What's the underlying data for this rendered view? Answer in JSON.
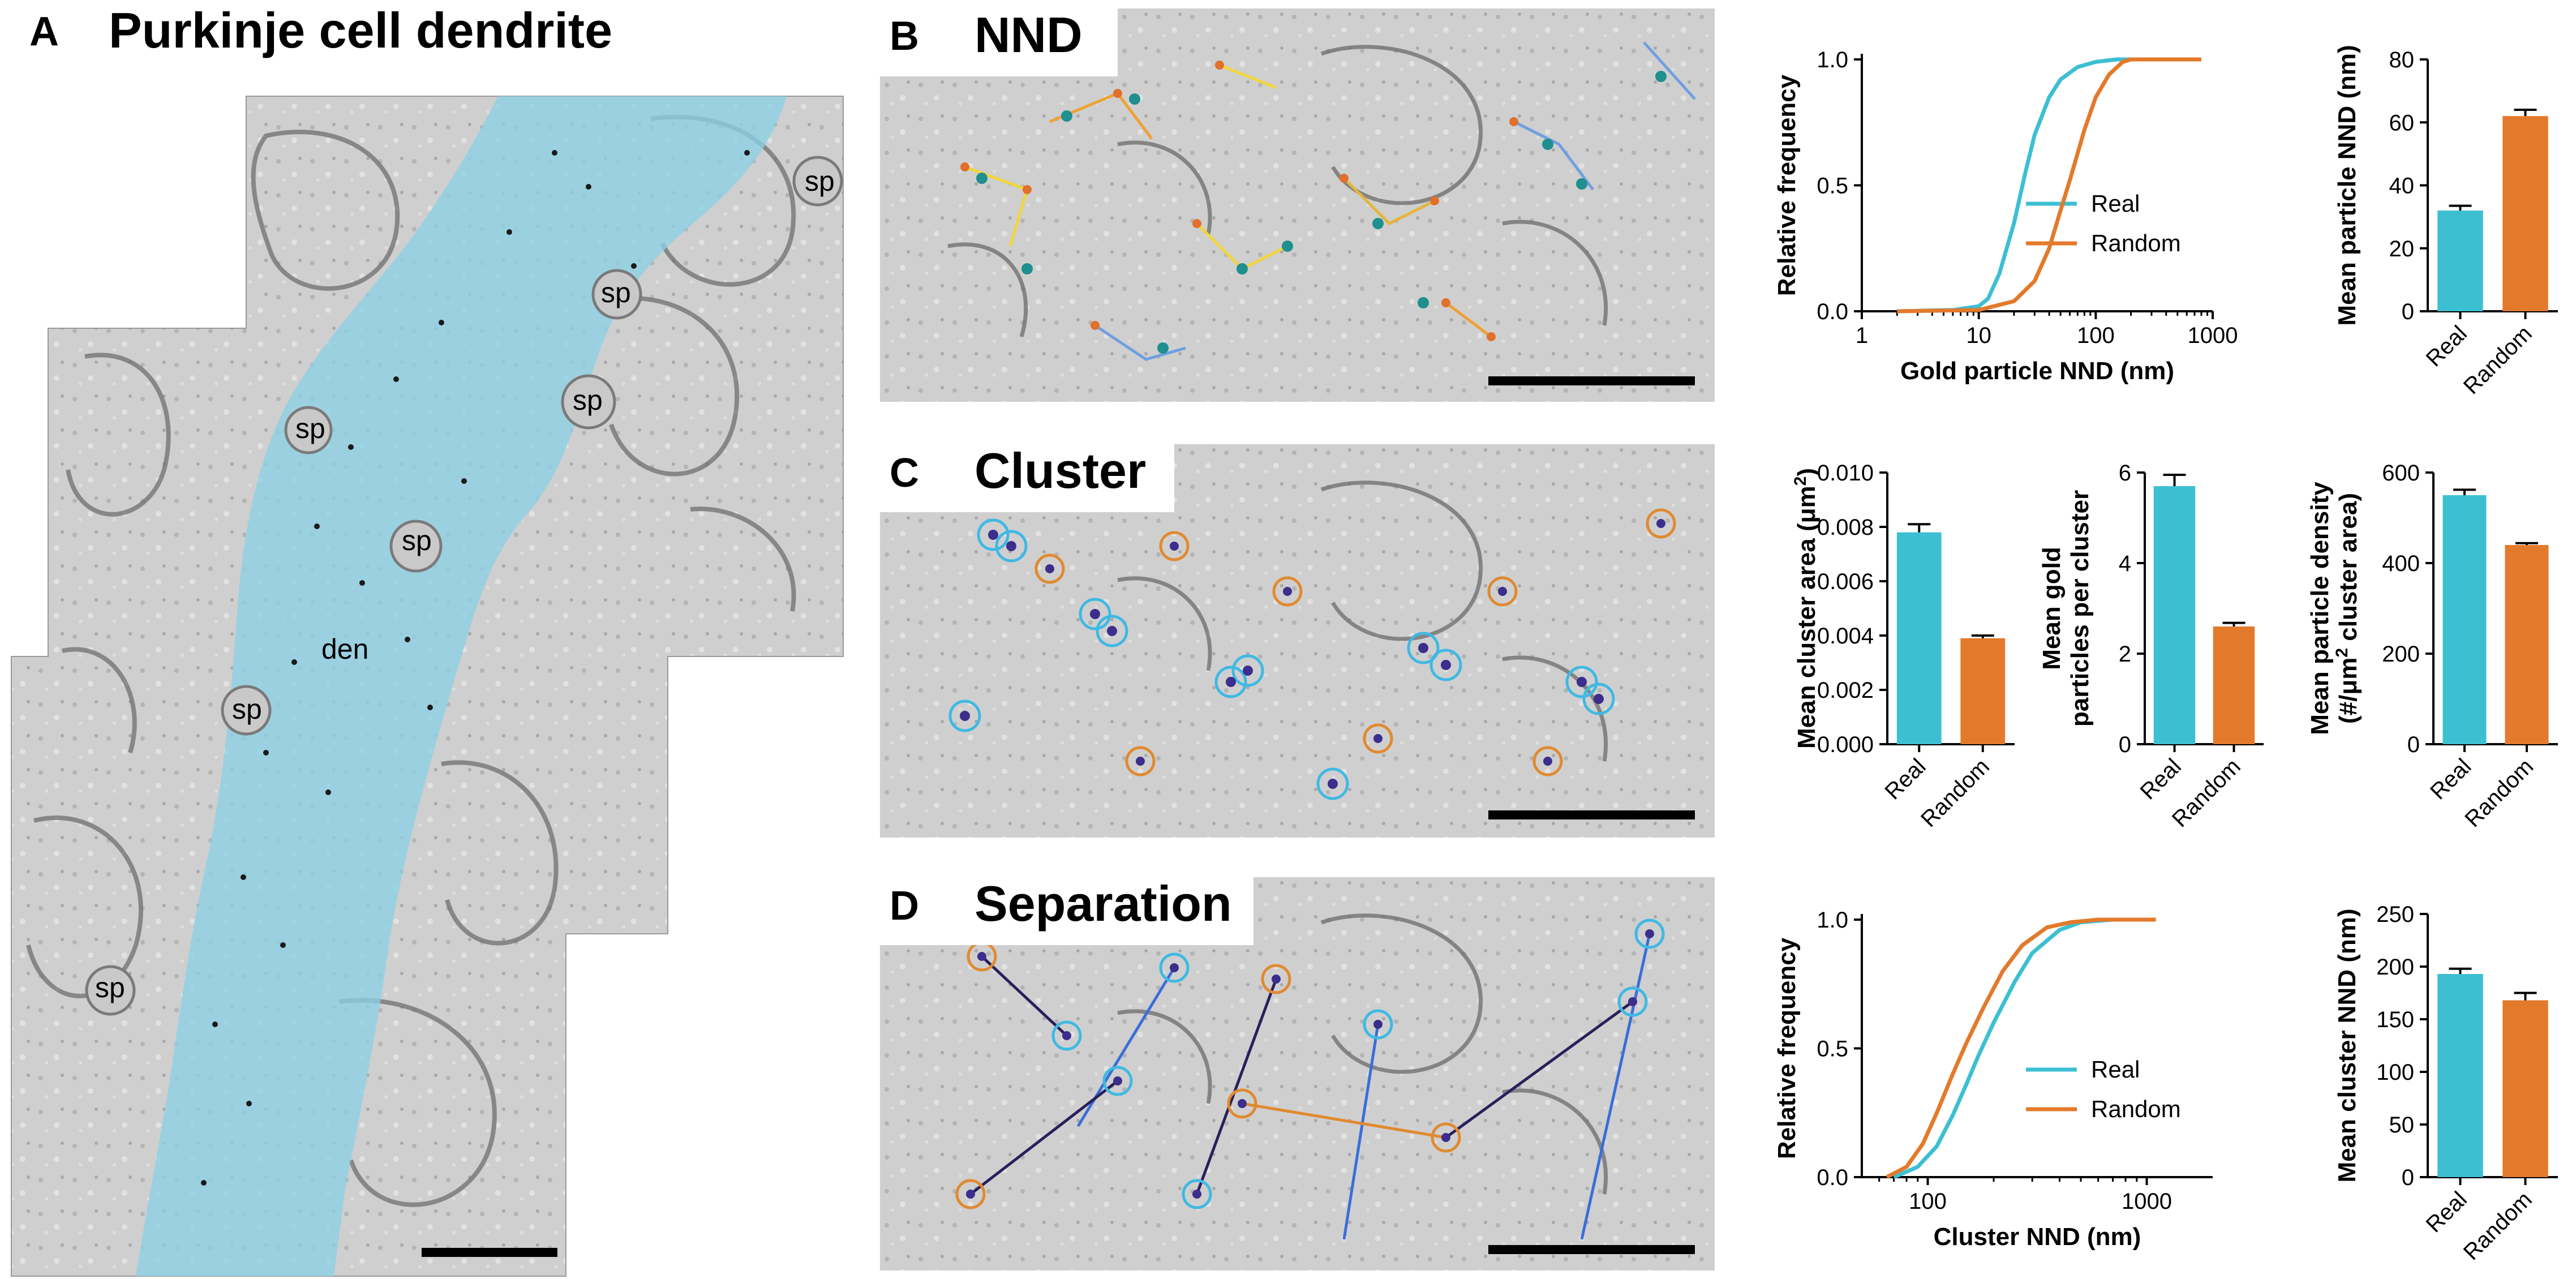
{
  "figure": {
    "panels": [
      {
        "id": "A",
        "letter": "A",
        "title": "Purkinje cell dendrite"
      },
      {
        "id": "B",
        "letter": "B",
        "title": "NND"
      },
      {
        "id": "C",
        "letter": "C",
        "title": "Cluster"
      },
      {
        "id": "D",
        "letter": "D",
        "title": "Separation"
      }
    ],
    "tissue_labels": {
      "den": "den",
      "sp": "sp"
    },
    "colors": {
      "real": "#3dbfd2",
      "random": "#e37a2b",
      "dendrite_tint": "#8ccfe4"
    }
  },
  "chart_data": [
    {
      "id": "nnd-cdf",
      "type": "line",
      "xlabel": "Gold particle NND (nm)",
      "ylabel": "Relative frequency",
      "xscale": "log",
      "xlim": [
        1,
        1000
      ],
      "ylim": [
        0,
        1
      ],
      "xticks": [
        "1",
        "10",
        "100",
        "1000"
      ],
      "yticks": [
        "0.0",
        "0.5",
        "1.0"
      ],
      "legend_position": "bottom-right",
      "series": [
        {
          "name": "Real",
          "color": "#3dbfd2",
          "x": [
            2,
            6,
            10,
            12,
            15,
            20,
            25,
            30,
            40,
            50,
            70,
            100,
            150,
            200,
            800
          ],
          "y": [
            0,
            0.005,
            0.02,
            0.05,
            0.15,
            0.35,
            0.55,
            0.7,
            0.85,
            0.92,
            0.97,
            0.99,
            1.0,
            1.0,
            1.0
          ]
        },
        {
          "name": "Random",
          "color": "#e37a2b",
          "x": [
            2,
            10,
            20,
            30,
            40,
            50,
            60,
            80,
            100,
            130,
            170,
            200,
            800
          ],
          "y": [
            0,
            0.005,
            0.04,
            0.12,
            0.25,
            0.4,
            0.52,
            0.72,
            0.85,
            0.94,
            0.99,
            1.0,
            1.0
          ]
        }
      ]
    },
    {
      "id": "nnd-bar",
      "type": "bar",
      "categories": [
        "Real",
        "Random"
      ],
      "values": [
        32,
        62
      ],
      "errors": [
        1.5,
        2
      ],
      "colors": [
        "#3dbfd2",
        "#e37a2b"
      ],
      "ylabel": "Mean particle NND (nm)",
      "ylim": [
        0,
        80
      ],
      "yticks": [
        "0",
        "20",
        "40",
        "60",
        "80"
      ]
    },
    {
      "id": "cluster-area-bar",
      "type": "bar",
      "categories": [
        "Real",
        "Random"
      ],
      "values": [
        0.0078,
        0.0039
      ],
      "errors": [
        0.0003,
        0.0001
      ],
      "colors": [
        "#3dbfd2",
        "#e37a2b"
      ],
      "ylabel_main": "Mean cluster area (μm",
      "ylabel_sup": "2",
      "ylabel_end": ")",
      "ylim": [
        0,
        0.01
      ],
      "yticks": [
        "0.000",
        "0.002",
        "0.004",
        "0.006",
        "0.008",
        "0.010"
      ]
    },
    {
      "id": "gold-per-cluster-bar",
      "type": "bar",
      "categories": [
        "Real",
        "Random"
      ],
      "values": [
        5.7,
        2.6
      ],
      "errors": [
        0.25,
        0.08
      ],
      "colors": [
        "#3dbfd2",
        "#e37a2b"
      ],
      "ylabel_lines": [
        "Mean gold",
        "particles per cluster"
      ],
      "ylim": [
        0,
        6
      ],
      "yticks": [
        "0",
        "2",
        "4",
        "6"
      ]
    },
    {
      "id": "particle-density-bar",
      "type": "bar",
      "categories": [
        "Real",
        "Random"
      ],
      "values": [
        550,
        440
      ],
      "errors": [
        12,
        4
      ],
      "colors": [
        "#3dbfd2",
        "#e37a2b"
      ],
      "ylabel_line1": "Mean particle density",
      "ylabel_line2_pre": "(#/μm",
      "ylabel_line2_sup": "2",
      "ylabel_line2_post": " cluster area)",
      "ylim": [
        0,
        600
      ],
      "yticks": [
        "0",
        "200",
        "400",
        "600"
      ]
    },
    {
      "id": "cluster-nnd-cdf",
      "type": "line",
      "xlabel": "Cluster NND (nm)",
      "ylabel": "Relative frequency",
      "xscale": "log",
      "xlim": [
        50,
        2000
      ],
      "ylim": [
        0,
        1
      ],
      "xticks": [
        "100",
        "1000"
      ],
      "yticks": [
        "0.0",
        "0.5",
        "1.0"
      ],
      "legend_position": "bottom-right",
      "series": [
        {
          "name": "Real",
          "color": "#3dbfd2",
          "x": [
            70,
            90,
            110,
            130,
            150,
            170,
            200,
            250,
            300,
            400,
            500,
            700,
            1100
          ],
          "y": [
            0,
            0.04,
            0.12,
            0.24,
            0.36,
            0.47,
            0.6,
            0.76,
            0.87,
            0.96,
            0.99,
            1.0,
            1.0
          ]
        },
        {
          "name": "Random",
          "color": "#e37a2b",
          "x": [
            65,
            80,
            95,
            110,
            130,
            150,
            180,
            220,
            270,
            350,
            450,
            600,
            1100
          ],
          "y": [
            0,
            0.04,
            0.13,
            0.25,
            0.4,
            0.52,
            0.66,
            0.8,
            0.9,
            0.97,
            0.99,
            1.0,
            1.0
          ]
        }
      ]
    },
    {
      "id": "cluster-nnd-bar",
      "type": "bar",
      "categories": [
        "Real",
        "Random"
      ],
      "values": [
        193,
        168
      ],
      "errors": [
        5,
        7
      ],
      "colors": [
        "#3dbfd2",
        "#e37a2b"
      ],
      "ylabel": "Mean cluster NND (nm)",
      "ylim": [
        0,
        250
      ],
      "yticks": [
        "0",
        "50",
        "100",
        "150",
        "200",
        "250"
      ]
    }
  ]
}
